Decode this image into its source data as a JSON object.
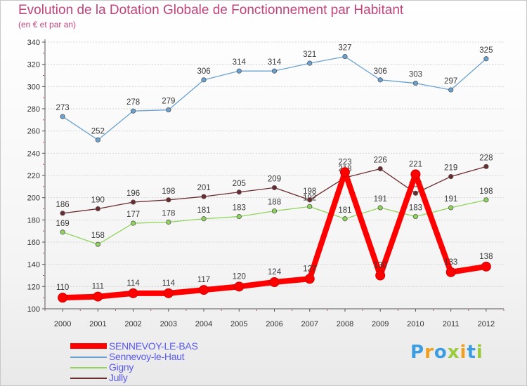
{
  "chart_data": {
    "type": "line",
    "title": "Evolution de la Dotation Globale de Fonctionnement par Habitant",
    "subtitle": "(en € et par an)",
    "xlabel": "",
    "ylabel": "",
    "categories": [
      "2000",
      "2001",
      "2002",
      "2003",
      "2004",
      "2005",
      "2006",
      "2007",
      "2008",
      "2009",
      "2010",
      "2011",
      "2012"
    ],
    "ylim": [
      100,
      340
    ],
    "yticks": [
      100,
      120,
      140,
      160,
      180,
      200,
      220,
      240,
      260,
      280,
      300,
      320,
      340
    ],
    "grid": "horizontal",
    "legend_position": "bottom-left",
    "series": [
      {
        "name": "Sennevoy-le-Haut",
        "color": "#6aa2d2",
        "values": [
          273,
          252,
          278,
          279,
          306,
          314,
          314,
          321,
          327,
          306,
          303,
          297,
          325
        ]
      },
      {
        "name": "Gigny",
        "color": "#8fd45c",
        "values": [
          169,
          158,
          177,
          178,
          181,
          183,
          188,
          192,
          181,
          191,
          183,
          191,
          198
        ]
      },
      {
        "name": "Jully",
        "color": "#6b2a2e",
        "values": [
          186,
          190,
          196,
          198,
          201,
          205,
          209,
          198,
          218,
          226,
          204,
          219,
          228
        ]
      },
      {
        "name": "SENNEVOY-LE-BAS",
        "color": "#ff0000",
        "values": [
          110,
          111,
          114,
          114,
          117,
          120,
          124,
          127,
          223,
          130,
          221,
          133,
          138
        ],
        "highlight": true
      }
    ]
  },
  "legend": {
    "items": [
      {
        "label": "SENNEVOY-LE-BAS",
        "color": "#ff0000",
        "text_color": "#5a5aef"
      },
      {
        "label": "Sennevoy-le-Haut",
        "color": "#6aa2d2",
        "text_color": "#5a5aef"
      },
      {
        "label": "Gigny",
        "color": "#8fd45c",
        "text_color": "#5a5aef"
      },
      {
        "label": "Jully",
        "color": "#6b2a2e",
        "text_color": "#5a5aef"
      }
    ]
  },
  "logo": {
    "letters": [
      "P",
      "r",
      "o",
      "x",
      "i",
      "t",
      "i"
    ],
    "colors": [
      "#3d9de0",
      "#f0a020",
      "#3d9de0",
      "#9acb3c",
      "#f0a020",
      "#3d9de0",
      "#9acb3c"
    ]
  }
}
